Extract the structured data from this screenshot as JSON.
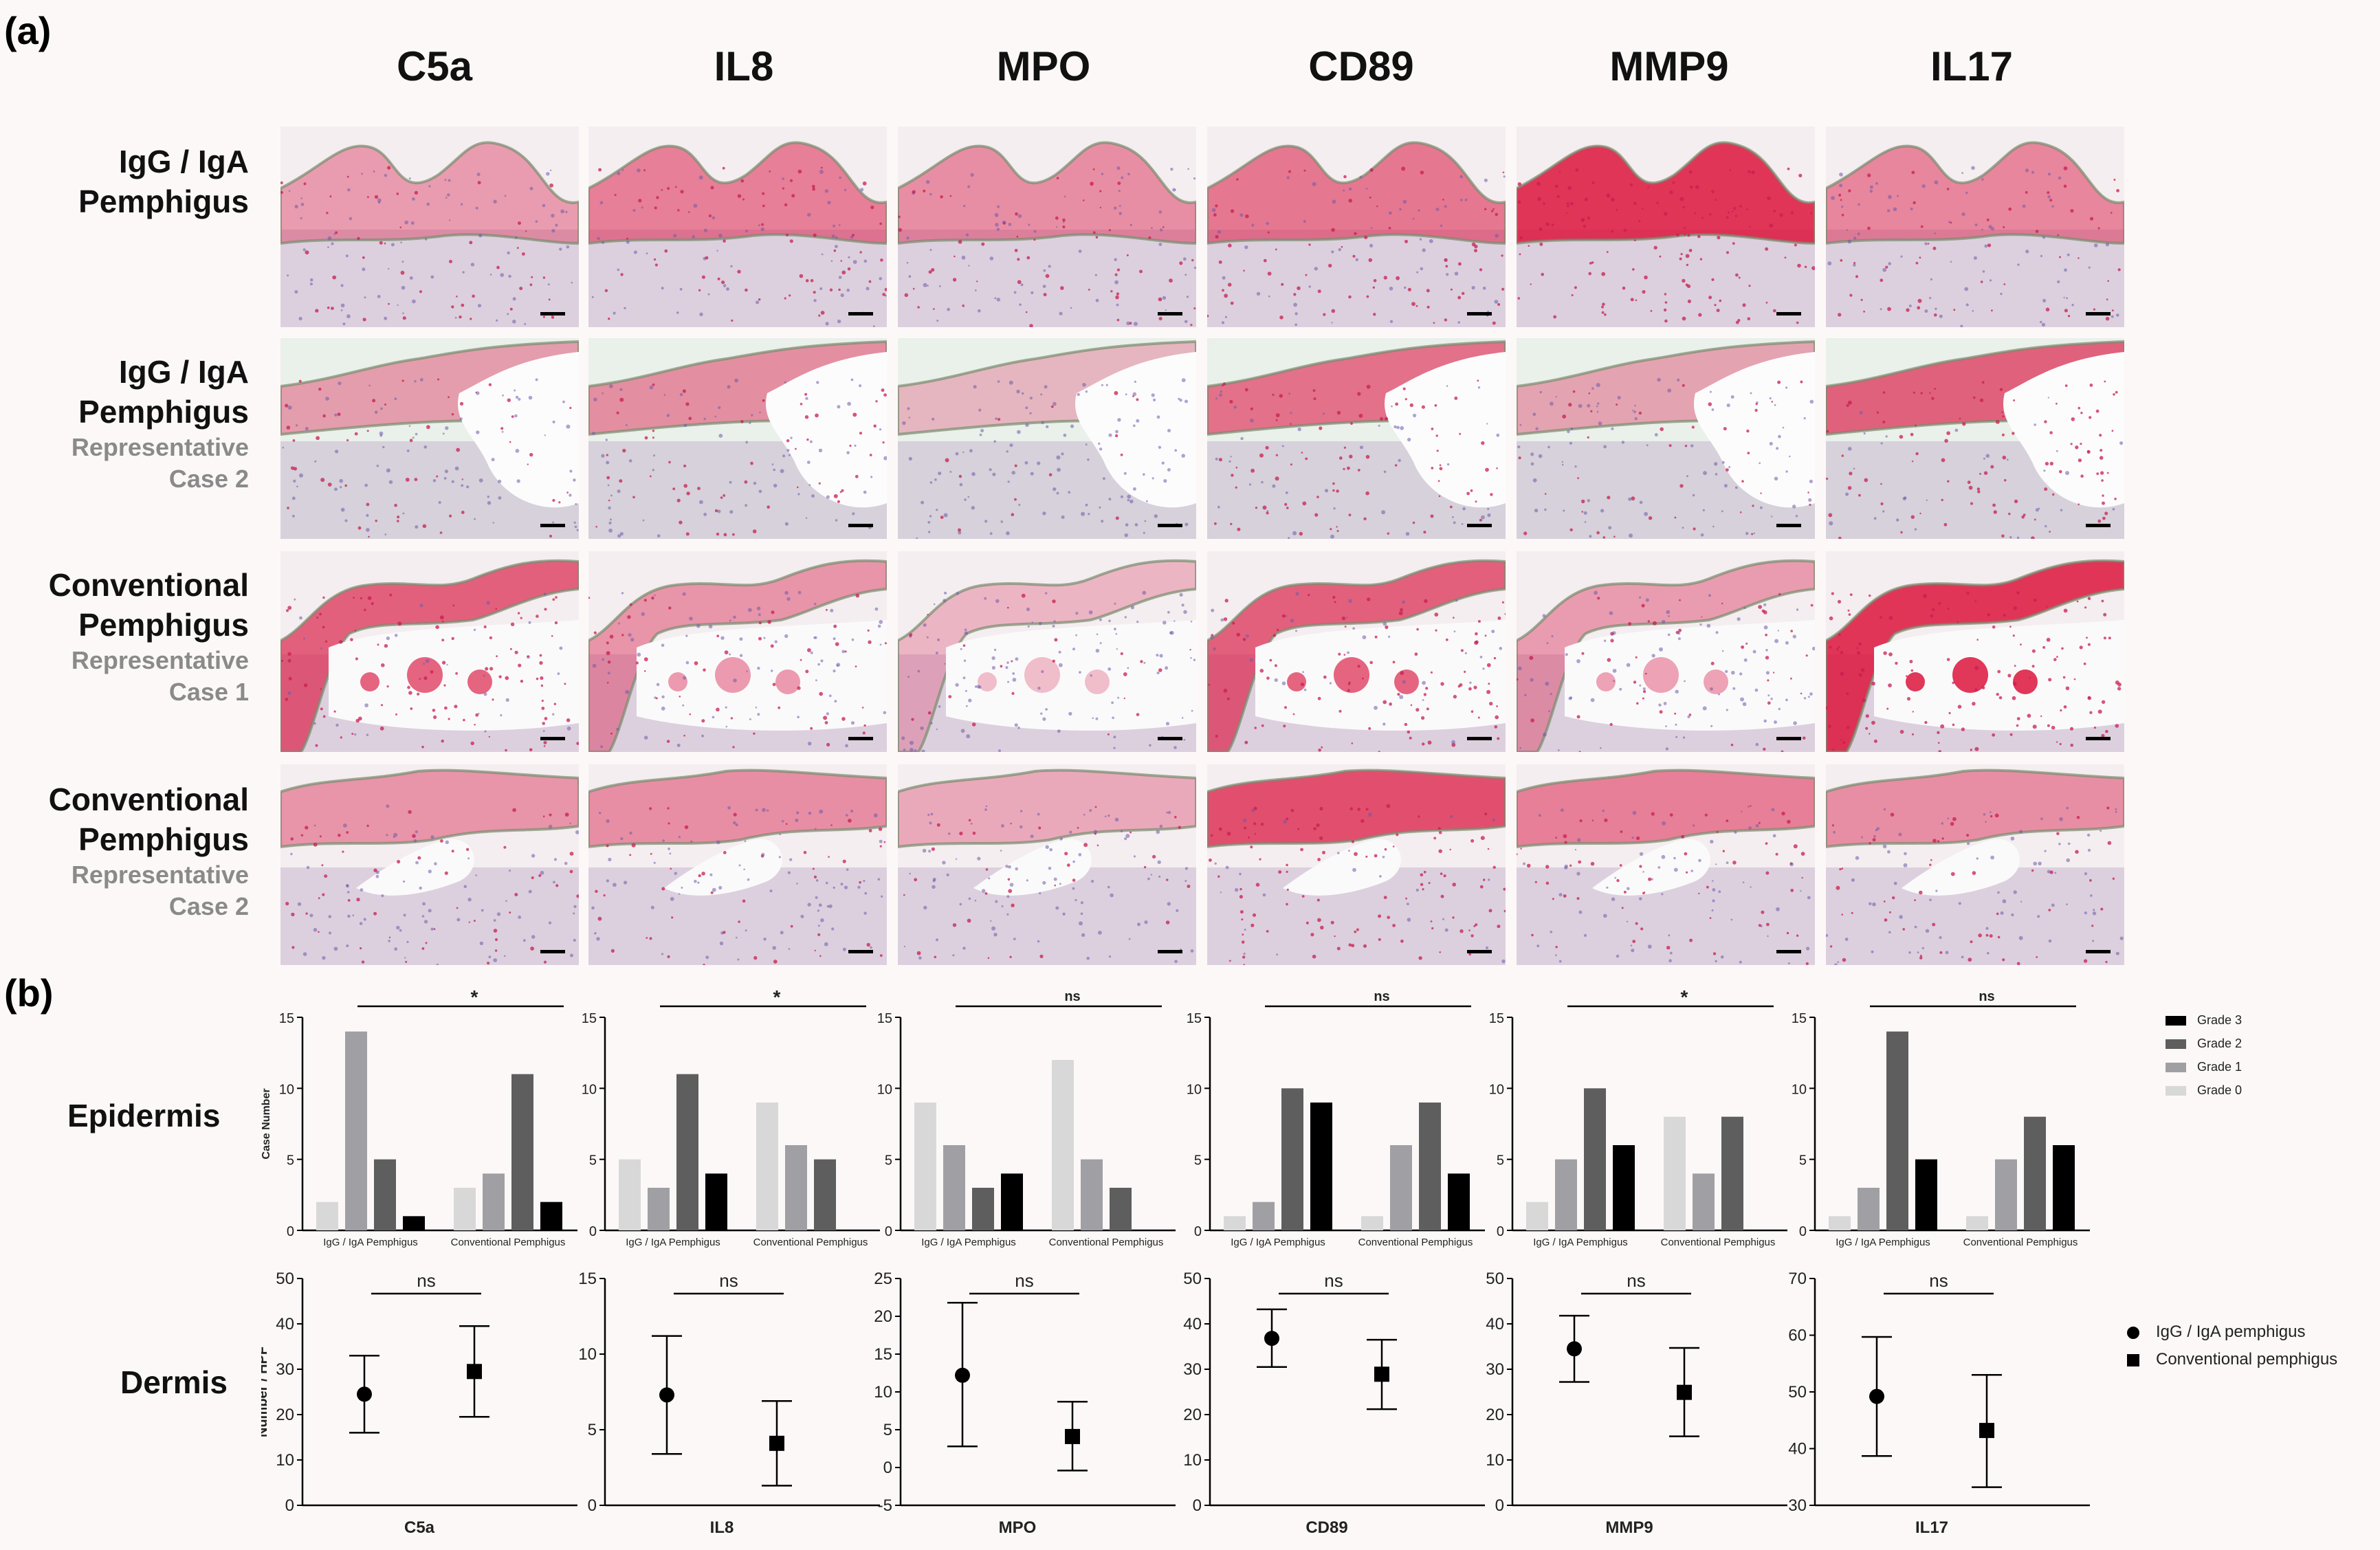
{
  "panel_a_label": "(a)",
  "panel_b_label": "(b)",
  "stains": [
    "C5a",
    "IL8",
    "MPO",
    "CD89",
    "MMP9",
    "IL17"
  ],
  "rows": [
    {
      "title1": "IgG / IgA",
      "title2": "Pemphigus",
      "sub1": "",
      "sub2": ""
    },
    {
      "title1": "IgG / IgA",
      "title2": "Pemphigus",
      "sub1": "Representative",
      "sub2": "Case 2"
    },
    {
      "title1": "Conventional",
      "title2": "Pemphigus",
      "sub1": "Representative",
      "sub2": "Case 1"
    },
    {
      "title1": "Conventional",
      "title2": "Pemphigus",
      "sub1": "Representative",
      "sub2": "Case 2"
    }
  ],
  "micrograph_intensity": [
    [
      0.35,
      0.55,
      0.45,
      0.6,
      1.0,
      0.5
    ],
    [
      0.35,
      0.45,
      0.15,
      0.65,
      0.3,
      0.75
    ],
    [
      0.75,
      0.4,
      0.15,
      0.75,
      0.35,
      1.0
    ],
    [
      0.4,
      0.45,
      0.25,
      0.85,
      0.55,
      0.45
    ]
  ],
  "epidermis_label": "Epidermis",
  "dermis_label": "Dermis",
  "epidermis_ylabel": "Case Number",
  "dermis_ylabel": "Number / HPF",
  "grade_legend": [
    {
      "label": "Grade 3",
      "color": "#000000"
    },
    {
      "label": "Grade 2",
      "color": "#5e5e5e"
    },
    {
      "label": "Grade 1",
      "color": "#a0a0a4"
    },
    {
      "label": "Grade 0",
      "color": "#d8d8d8"
    }
  ],
  "group_legend": [
    {
      "label": "IgG / IgA pemphigus",
      "marker": "circle"
    },
    {
      "label": "Conventional pemphigus",
      "marker": "square"
    }
  ],
  "chart_data": [
    {
      "type": "bar",
      "stain": "C5a",
      "categories": [
        "IgG / IgA Pemphigus",
        "Conventional Pemphigus"
      ],
      "ylabel": "Case Number",
      "ylim": [
        0,
        15
      ],
      "yticks": [
        0,
        5,
        10,
        15
      ],
      "significance": "*",
      "series": [
        {
          "name": "Grade 0",
          "values": [
            2,
            3
          ]
        },
        {
          "name": "Grade 1",
          "values": [
            14,
            4
          ]
        },
        {
          "name": "Grade 2",
          "values": [
            5,
            11
          ]
        },
        {
          "name": "Grade 3",
          "values": [
            1,
            2
          ]
        }
      ]
    },
    {
      "type": "bar",
      "stain": "IL8",
      "categories": [
        "IgG / IgA Pemphigus",
        "Conventional Pemphigus"
      ],
      "ylim": [
        0,
        15
      ],
      "yticks": [
        0,
        5,
        10,
        15
      ],
      "significance": "*",
      "series": [
        {
          "name": "Grade 0",
          "values": [
            5,
            9
          ]
        },
        {
          "name": "Grade 1",
          "values": [
            3,
            6
          ]
        },
        {
          "name": "Grade 2",
          "values": [
            11,
            5
          ]
        },
        {
          "name": "Grade 3",
          "values": [
            4,
            0
          ]
        }
      ]
    },
    {
      "type": "bar",
      "stain": "MPO",
      "categories": [
        "IgG / IgA Pemphigus",
        "Conventional Pemphigus"
      ],
      "ylim": [
        0,
        15
      ],
      "yticks": [
        0,
        5,
        10,
        15
      ],
      "significance": "ns",
      "series": [
        {
          "name": "Grade 0",
          "values": [
            9,
            12
          ]
        },
        {
          "name": "Grade 1",
          "values": [
            6,
            5
          ]
        },
        {
          "name": "Grade 2",
          "values": [
            3,
            3
          ]
        },
        {
          "name": "Grade 3",
          "values": [
            4,
            0
          ]
        }
      ]
    },
    {
      "type": "bar",
      "stain": "CD89",
      "categories": [
        "IgG / IgA Pemphigus",
        "Conventional Pemphigus"
      ],
      "ylim": [
        0,
        15
      ],
      "yticks": [
        0,
        5,
        10,
        15
      ],
      "significance": "ns",
      "series": [
        {
          "name": "Grade 0",
          "values": [
            1,
            1
          ]
        },
        {
          "name": "Grade 1",
          "values": [
            2,
            6
          ]
        },
        {
          "name": "Grade 2",
          "values": [
            10,
            9
          ]
        },
        {
          "name": "Grade 3",
          "values": [
            9,
            4
          ]
        }
      ]
    },
    {
      "type": "bar",
      "stain": "MMP9",
      "categories": [
        "IgG / IgA Pemphigus",
        "Conventional Pemphigus"
      ],
      "ylim": [
        0,
        15
      ],
      "yticks": [
        0,
        5,
        10,
        15
      ],
      "significance": "*",
      "series": [
        {
          "name": "Grade 0",
          "values": [
            2,
            8
          ]
        },
        {
          "name": "Grade 1",
          "values": [
            5,
            4
          ]
        },
        {
          "name": "Grade 2",
          "values": [
            10,
            8
          ]
        },
        {
          "name": "Grade 3",
          "values": [
            6,
            0
          ]
        }
      ]
    },
    {
      "type": "bar",
      "stain": "IL17",
      "categories": [
        "IgG / IgA Pemphigus",
        "Conventional Pemphigus"
      ],
      "ylim": [
        0,
        15
      ],
      "yticks": [
        0,
        5,
        10,
        15
      ],
      "significance": "ns",
      "series": [
        {
          "name": "Grade 0",
          "values": [
            1,
            1
          ]
        },
        {
          "name": "Grade 1",
          "values": [
            3,
            5
          ]
        },
        {
          "name": "Grade 2",
          "values": [
            14,
            8
          ]
        },
        {
          "name": "Grade 3",
          "values": [
            5,
            6
          ]
        }
      ]
    },
    {
      "type": "scatter",
      "stain": "C5a",
      "xlabel": "C5a",
      "ylabel": "Number / HPF",
      "ylim": [
        0,
        50
      ],
      "yticks": [
        0,
        10,
        20,
        30,
        40,
        50
      ],
      "significance": "ns",
      "points": [
        {
          "group": "IgG / IgA pemphigus",
          "mean": 24.5,
          "low": 16,
          "high": 33
        },
        {
          "group": "Conventional pemphigus",
          "mean": 29.5,
          "low": 19.5,
          "high": 39.5
        }
      ]
    },
    {
      "type": "scatter",
      "stain": "IL8",
      "xlabel": "IL8",
      "ylim": [
        0,
        15
      ],
      "yticks": [
        0,
        5,
        10,
        15
      ],
      "significance": "ns",
      "points": [
        {
          "group": "IgG / IgA pemphigus",
          "mean": 7.3,
          "low": 3.4,
          "high": 11.2
        },
        {
          "group": "Conventional pemphigus",
          "mean": 4.1,
          "low": 1.3,
          "high": 6.9
        }
      ]
    },
    {
      "type": "scatter",
      "stain": "MPO",
      "xlabel": "MPO",
      "ylim": [
        -5,
        25
      ],
      "yticks": [
        -5,
        0,
        5,
        10,
        15,
        20,
        25
      ],
      "significance": "ns",
      "points": [
        {
          "group": "IgG / IgA pemphigus",
          "mean": 12.2,
          "low": 2.8,
          "high": 21.8
        },
        {
          "group": "Conventional pemphigus",
          "mean": 4.1,
          "low": -0.4,
          "high": 8.7
        }
      ]
    },
    {
      "type": "scatter",
      "stain": "CD89",
      "xlabel": "CD89",
      "ylim": [
        0,
        50
      ],
      "yticks": [
        0,
        10,
        20,
        30,
        40,
        50
      ],
      "significance": "ns",
      "points": [
        {
          "group": "IgG / IgA pemphigus",
          "mean": 36.8,
          "low": 30.5,
          "high": 43.2
        },
        {
          "group": "Conventional pemphigus",
          "mean": 28.9,
          "low": 21.2,
          "high": 36.5
        }
      ]
    },
    {
      "type": "scatter",
      "stain": "MMP9",
      "xlabel": "MMP9",
      "ylim": [
        0,
        50
      ],
      "yticks": [
        0,
        10,
        20,
        30,
        40,
        50
      ],
      "significance": "ns",
      "points": [
        {
          "group": "IgG / IgA pemphigus",
          "mean": 34.5,
          "low": 27.2,
          "high": 41.8
        },
        {
          "group": "Conventional pemphigus",
          "mean": 24.9,
          "low": 15.2,
          "high": 34.7
        }
      ]
    },
    {
      "type": "scatter",
      "stain": "IL17",
      "xlabel": "IL17",
      "ylim": [
        30,
        70
      ],
      "yticks": [
        30,
        40,
        50,
        60,
        70
      ],
      "significance": "ns",
      "points": [
        {
          "group": "IgG / IgA pemphigus",
          "mean": 49.2,
          "low": 38.7,
          "high": 59.7
        },
        {
          "group": "Conventional pemphigus",
          "mean": 43.2,
          "low": 33.2,
          "high": 53
        }
      ]
    }
  ]
}
